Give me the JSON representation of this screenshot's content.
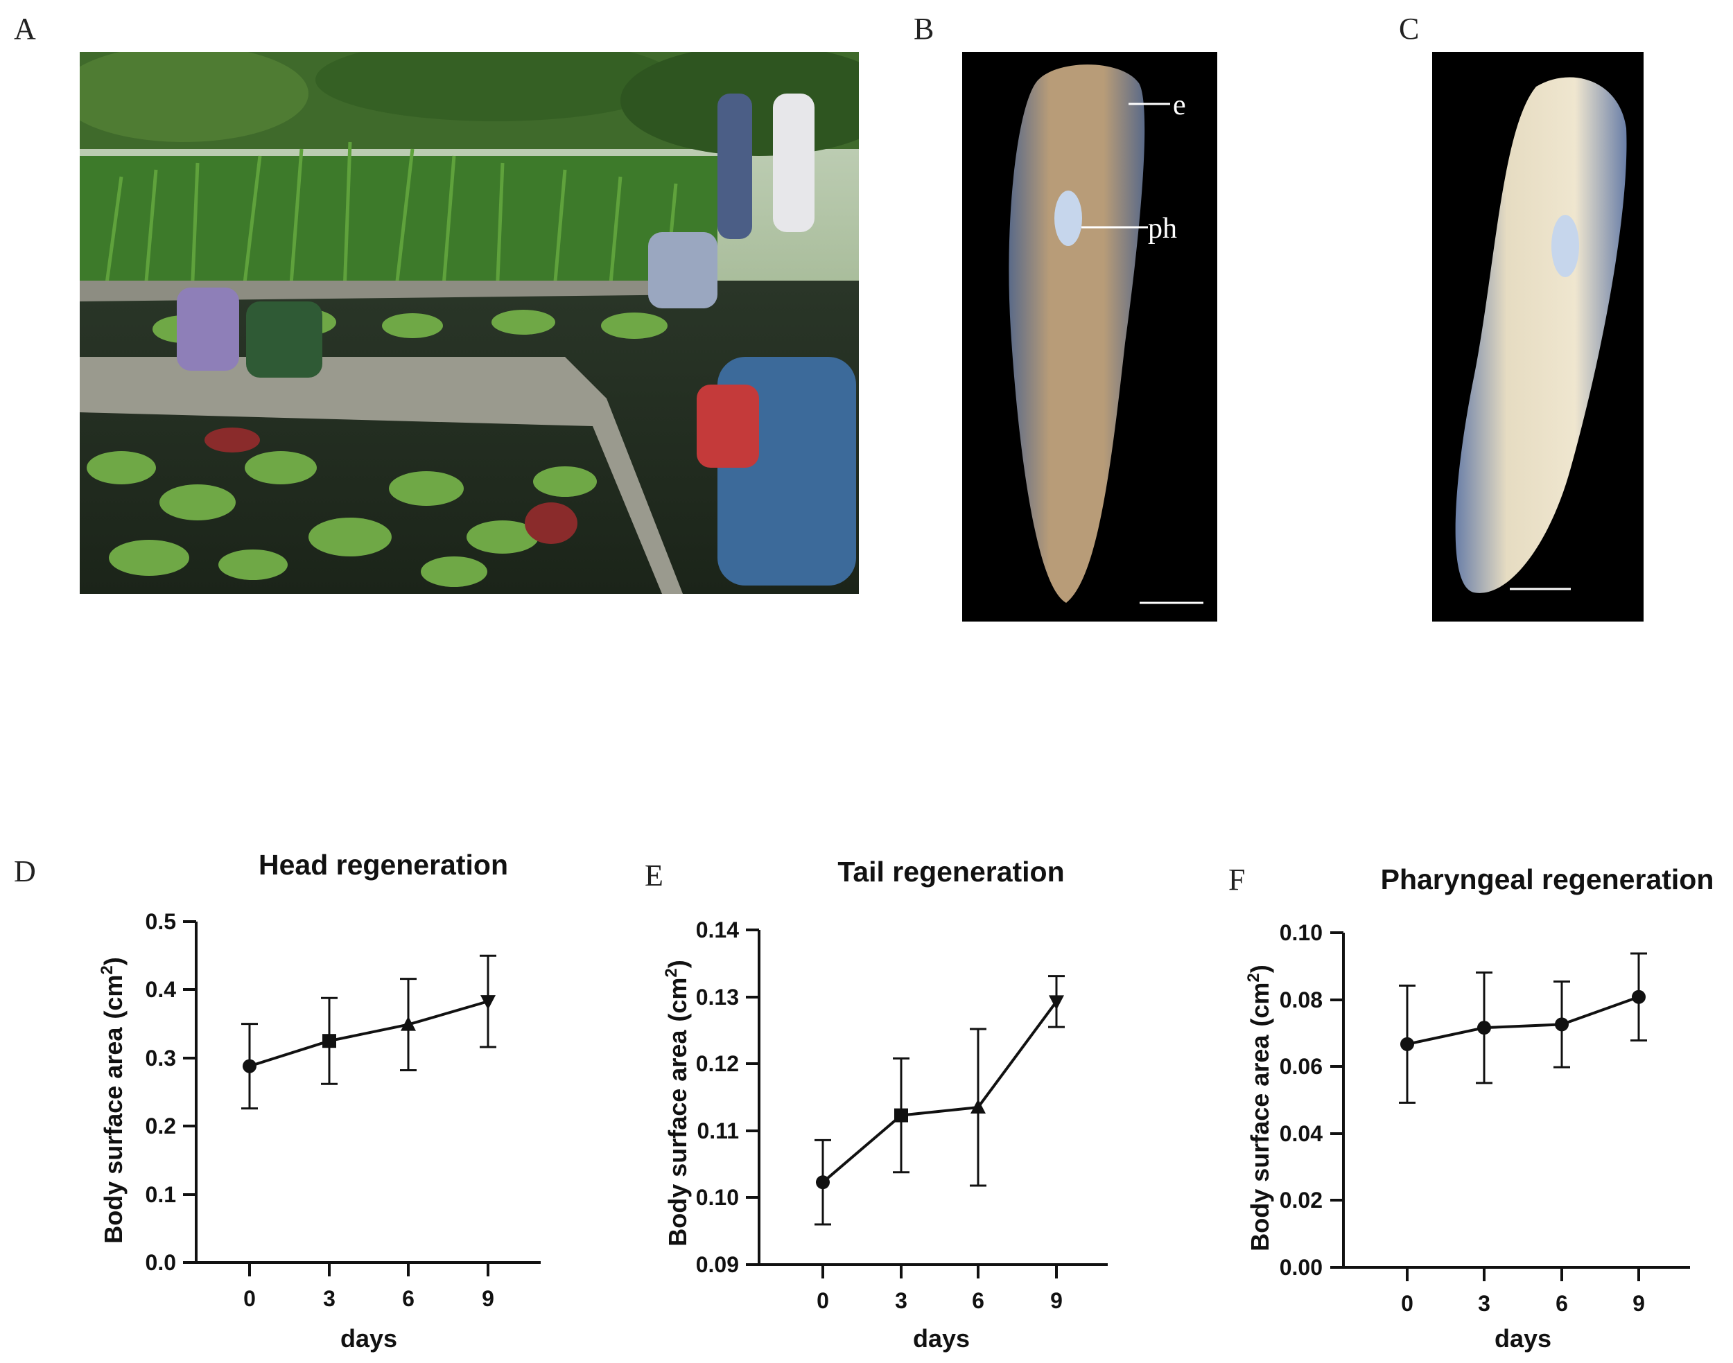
{
  "panels": {
    "a": "A",
    "b": "B",
    "c": "C",
    "d": "D",
    "e": "E",
    "f": "F"
  },
  "annotations": {
    "eye": "e",
    "pharynx": "ph"
  },
  "colors": {
    "line": "#111111",
    "photo_bg": "#000000"
  },
  "chart_data": [
    {
      "type": "line",
      "title": "Head regeneration",
      "xlabel": "days",
      "ylabel": "Body surface area",
      "ylabel_unit": "(cm",
      "ylabel_sup": "2",
      "ylabel_close": ")",
      "x": [
        0,
        3,
        6,
        9
      ],
      "xticks": [
        "0",
        "3",
        "6",
        "9"
      ],
      "yticks": [
        "0.0",
        "0.1",
        "0.2",
        "0.3",
        "0.4",
        "0.5"
      ],
      "ylim": [
        0,
        0.5
      ],
      "markers": [
        "circle",
        "square",
        "triangle-up",
        "triangle-down"
      ],
      "values": [
        0.288,
        0.325,
        0.349,
        0.383
      ],
      "error": [
        0.062,
        0.063,
        0.067,
        0.067
      ]
    },
    {
      "type": "line",
      "title": "Tail regeneration",
      "xlabel": "days",
      "ylabel": "Body surface area",
      "ylabel_unit": "(cm",
      "ylabel_sup": "2",
      "ylabel_close": ")",
      "x": [
        0,
        3,
        6,
        9
      ],
      "xticks": [
        "0",
        "3",
        "6",
        "9"
      ],
      "yticks": [
        "0.09",
        "0.10",
        "0.11",
        "0.12",
        "0.13",
        "0.14"
      ],
      "ylim": [
        0.09,
        0.14
      ],
      "markers": [
        "circle",
        "square",
        "triangle-up",
        "triangle-down"
      ],
      "values": [
        0.1023,
        0.1123,
        0.1135,
        0.1293
      ],
      "error": [
        0.0063,
        0.0085,
        0.0117,
        0.0038
      ]
    },
    {
      "type": "line",
      "title": "Pharyngeal regeneration",
      "xlabel": "days",
      "ylabel": "Body surface area",
      "ylabel_unit": "(cm",
      "ylabel_sup": "2",
      "ylabel_close": ")",
      "x": [
        0,
        3,
        6,
        9
      ],
      "xticks": [
        "0",
        "3",
        "6",
        "9"
      ],
      "yticks": [
        "0.00",
        "0.02",
        "0.04",
        "0.06",
        "0.08",
        "0.10"
      ],
      "ylim": [
        0,
        0.1
      ],
      "markers": [
        "circle",
        "circle",
        "circle",
        "circle"
      ],
      "values": [
        0.0667,
        0.0716,
        0.0726,
        0.0808
      ],
      "error": [
        0.0175,
        0.0165,
        0.0128,
        0.013
      ]
    }
  ]
}
